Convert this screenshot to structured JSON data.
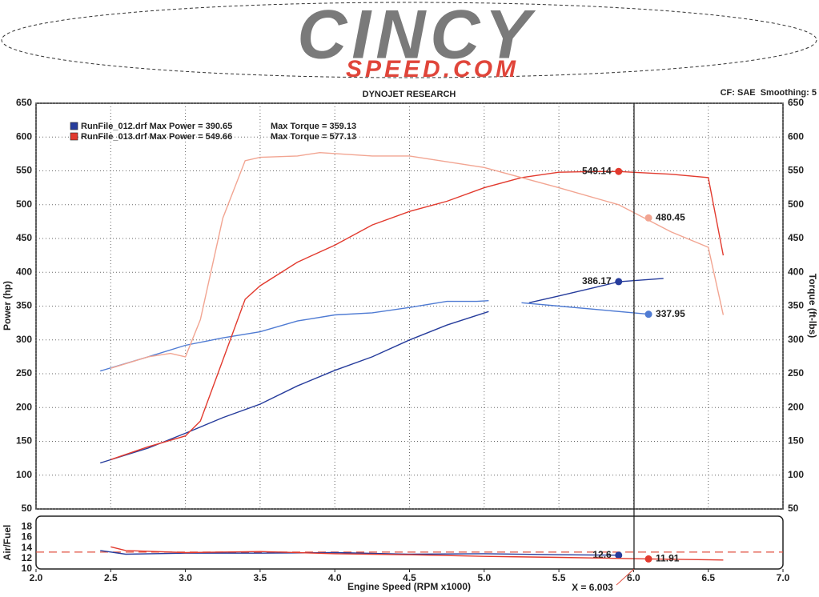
{
  "logo": {
    "name": "CINCY",
    "domain": "SPEED.COM"
  },
  "chart_data": [
    {
      "type": "line",
      "title": "DYNOJET RESEARCH",
      "subtitle": "CF: SAE  Smoothing: 5",
      "y_label": "Power (hp)",
      "y2_label": "Torque (ft-lbs)",
      "xlim": [
        2,
        7
      ],
      "ylim": [
        50,
        650
      ],
      "y2lim": [
        50,
        650
      ],
      "yticks": [
        50,
        100,
        150,
        200,
        250,
        300,
        350,
        400,
        450,
        500,
        550,
        600,
        650
      ],
      "y2ticks": [
        50,
        100,
        150,
        200,
        250,
        300,
        350,
        400,
        450,
        500,
        550,
        600,
        650
      ],
      "grid": true,
      "series": [
        {
          "name": "RunFile_012.drf Max Power = 390.65",
          "color": "#263c9c",
          "x": [
            2.43,
            2.75,
            3.0,
            3.25,
            3.5,
            3.75,
            4.0,
            4.25,
            4.5,
            4.75,
            5.03,
            5.15,
            5.3,
            5.5,
            5.75,
            5.9,
            6.2
          ],
          "values": [
            118,
            140,
            162,
            185,
            205,
            232,
            255,
            275,
            300,
            322,
            342,
            null,
            355,
            365,
            378,
            386,
            391
          ],
          "marker": {
            "x": 5.9,
            "value": 386.17
          }
        },
        {
          "name": "Max Torque = 359.13",
          "color": "#4f7bd3",
          "axis": "y2",
          "x": [
            2.43,
            2.75,
            3.0,
            3.25,
            3.5,
            3.75,
            4.0,
            4.25,
            4.5,
            4.75,
            4.95,
            5.03,
            5.15,
            5.25,
            5.5,
            5.75,
            6.0,
            6.1
          ],
          "values": [
            254,
            275,
            292,
            303,
            312,
            328,
            337,
            340,
            348,
            357,
            357,
            358,
            null,
            355,
            350,
            345,
            340,
            338
          ],
          "marker": {
            "x": 6.1,
            "value": 337.95
          }
        },
        {
          "name": "RunFile_013.drf Max Power = 549.66",
          "color": "#e23a2e",
          "x": [
            2.5,
            2.75,
            3.0,
            3.1,
            3.25,
            3.4,
            3.5,
            3.75,
            4.0,
            4.25,
            4.5,
            4.75,
            5.0,
            5.25,
            5.5,
            5.75,
            5.9,
            6.25,
            6.5,
            6.6
          ],
          "values": [
            123,
            142,
            158,
            180,
            270,
            360,
            380,
            415,
            440,
            470,
            490,
            505,
            525,
            540,
            548,
            549,
            549,
            545,
            540,
            425
          ],
          "marker": {
            "x": 5.9,
            "value": 549.14
          }
        },
        {
          "name": "Max Torque = 577.13",
          "color": "#f2a592",
          "axis": "y2",
          "x": [
            2.5,
            2.75,
            2.9,
            3.0,
            3.1,
            3.25,
            3.4,
            3.5,
            3.75,
            3.9,
            4.25,
            4.5,
            5.0,
            5.5,
            5.9,
            6.25,
            6.5,
            6.6
          ],
          "values": [
            258,
            275,
            280,
            275,
            330,
            480,
            565,
            570,
            572,
            577,
            572,
            572,
            555,
            525,
            500,
            460,
            437,
            337
          ],
          "marker": {
            "x": 6.1,
            "value": 480.45
          }
        }
      ]
    },
    {
      "type": "line",
      "y_label": "Air/Fuel",
      "x_label": "Engine Speed (RPM x1000)",
      "xlim": [
        2,
        7
      ],
      "ylim": [
        10,
        20
      ],
      "yticks": [
        10,
        12,
        14,
        16,
        18
      ],
      "xticks": [
        {
          "value": 2,
          "label": "2.0"
        },
        {
          "value": 2.5,
          "label": "2.5"
        },
        {
          "value": 3,
          "label": "3.0"
        },
        {
          "value": 3.5,
          "label": "3.5"
        },
        {
          "value": 4,
          "label": "4.0"
        },
        {
          "value": 4.5,
          "label": "4.5"
        },
        {
          "value": 5,
          "label": "5.0"
        },
        {
          "value": 5.5,
          "label": "5.5"
        },
        {
          "value": 6,
          "label": "6.0"
        },
        {
          "value": 6.5,
          "label": "6.5"
        },
        {
          "value": 7,
          "label": "7.0"
        }
      ],
      "reference_line": 13.2,
      "cursor": {
        "x": 6.003,
        "label": "X = 6.003"
      },
      "series": [
        {
          "color": "#263c9c",
          "x": [
            2.43,
            2.6,
            3.0,
            3.5,
            4.0,
            4.5,
            5.0,
            5.5,
            5.9
          ],
          "values": [
            13.5,
            12.8,
            13.0,
            13.0,
            13.1,
            12.8,
            12.9,
            12.7,
            12.6
          ],
          "marker": {
            "x": 5.9,
            "value": 12.6
          }
        },
        {
          "color": "#e23a2e",
          "x": [
            2.5,
            2.6,
            3.0,
            3.5,
            4.0,
            4.5,
            5.0,
            5.5,
            6.1,
            6.6
          ],
          "values": [
            14.2,
            13.5,
            13.1,
            13.3,
            12.9,
            12.7,
            12.4,
            12.2,
            11.91,
            11.7
          ],
          "marker": {
            "x": 6.1,
            "value": 11.91
          }
        }
      ]
    }
  ]
}
